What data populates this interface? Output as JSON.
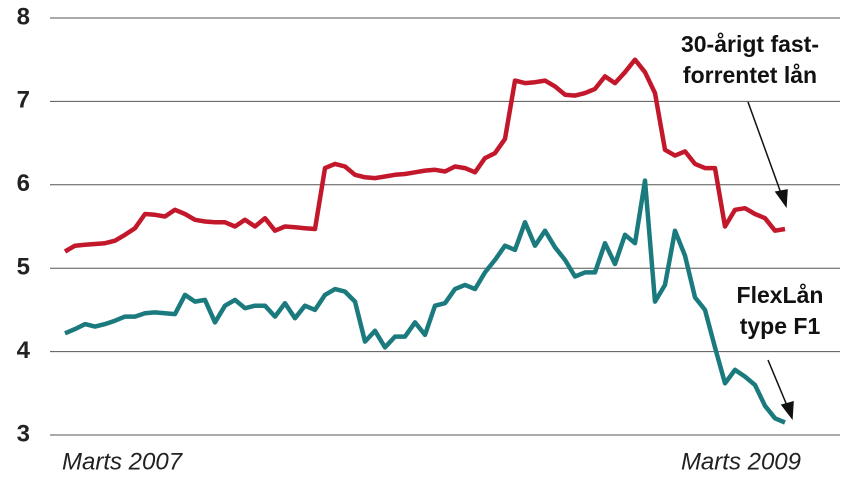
{
  "chart_data": {
    "type": "line",
    "categories": [
      "Marts 2007",
      null,
      null,
      null,
      null,
      null,
      null,
      null,
      null,
      null,
      null,
      null,
      null,
      null,
      null,
      null,
      null,
      null,
      null,
      null,
      null,
      null,
      null,
      null,
      null,
      null,
      null,
      null,
      null,
      null,
      null,
      null,
      null,
      null,
      null,
      null,
      null,
      null,
      null,
      null,
      null,
      null,
      null,
      null,
      null,
      null,
      null,
      null,
      null,
      null,
      null,
      null,
      null,
      null,
      null,
      null,
      null,
      null,
      null,
      null,
      null,
      null,
      null,
      null,
      null,
      null,
      null,
      null,
      null,
      null,
      null,
      null,
      "Marts 2009"
    ],
    "series": [
      {
        "name": [
          "30-årigt fast-",
          "forrentet lån"
        ],
        "color": "#c3182b",
        "values": [
          5.2,
          5.27,
          5.28,
          5.29,
          5.3,
          5.33,
          5.4,
          5.48,
          5.65,
          5.64,
          5.62,
          5.7,
          5.65,
          5.58,
          5.56,
          5.55,
          5.55,
          5.5,
          5.58,
          5.5,
          5.6,
          5.45,
          5.5,
          5.49,
          5.48,
          5.47,
          6.2,
          6.25,
          6.22,
          6.12,
          6.09,
          6.08,
          6.1,
          6.12,
          6.13,
          6.15,
          6.17,
          6.18,
          6.16,
          6.22,
          6.2,
          6.15,
          6.32,
          6.38,
          6.55,
          7.25,
          7.22,
          7.23,
          7.25,
          7.18,
          7.08,
          7.07,
          7.1,
          7.15,
          7.3,
          7.22,
          7.35,
          7.5,
          7.35,
          7.1,
          6.42,
          6.35,
          6.4,
          6.25,
          6.2,
          6.2,
          5.5,
          5.7,
          5.72,
          5.65,
          5.6,
          5.45,
          5.47
        ]
      },
      {
        "name": [
          "FlexLån",
          "type F1"
        ],
        "color": "#1b7a7e",
        "values": [
          4.22,
          4.27,
          4.33,
          4.3,
          4.33,
          4.37,
          4.42,
          4.42,
          4.46,
          4.47,
          4.46,
          4.45,
          4.68,
          4.6,
          4.62,
          4.35,
          4.55,
          4.62,
          4.52,
          4.55,
          4.55,
          4.42,
          4.58,
          4.4,
          4.55,
          4.5,
          4.68,
          4.75,
          4.72,
          4.6,
          4.12,
          4.25,
          4.05,
          4.18,
          4.18,
          4.35,
          4.2,
          4.55,
          4.58,
          4.75,
          4.8,
          4.75,
          4.95,
          5.1,
          5.27,
          5.22,
          5.55,
          5.27,
          5.45,
          5.25,
          5.1,
          4.9,
          4.95,
          4.95,
          5.3,
          5.05,
          5.4,
          5.3,
          6.05,
          4.6,
          4.8,
          5.45,
          5.15,
          4.65,
          4.5,
          4.05,
          3.62,
          3.78,
          3.7,
          3.6,
          3.35,
          3.2,
          3.15
        ]
      }
    ],
    "ylim": [
      3,
      8
    ],
    "yticks": [
      3,
      4,
      5,
      6,
      7,
      8
    ],
    "grid": true
  }
}
